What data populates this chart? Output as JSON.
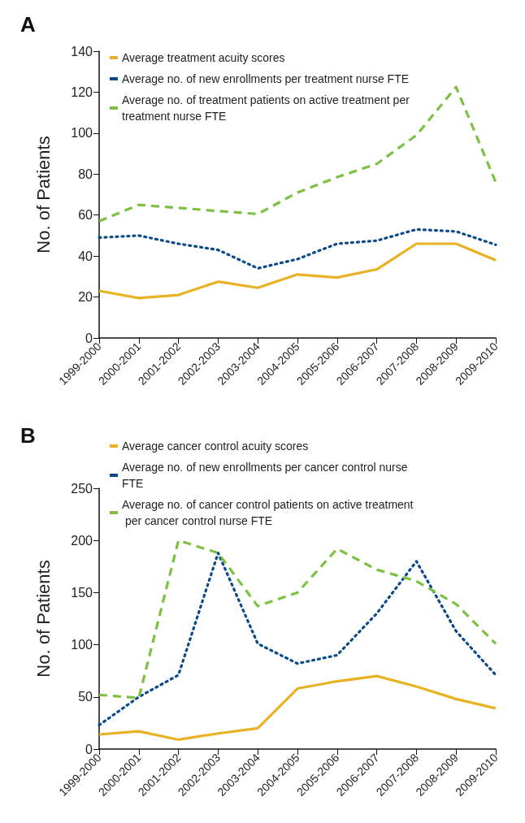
{
  "chart_data": [
    {
      "type": "line",
      "title": "A",
      "ylabel": "No. of Patients",
      "categories": [
        "1999-2000",
        "2000-2001",
        "2001-2002",
        "2002-2003",
        "2003-2004",
        "2004-2005",
        "2005-2006",
        "2006-2007",
        "2007-2008",
        "2008-2009",
        "2009-2010"
      ],
      "ylim": [
        0,
        140
      ],
      "yticks": [
        0,
        20,
        40,
        60,
        80,
        100,
        120,
        140
      ],
      "grid": false,
      "legend": "top left",
      "marker": "none",
      "series": [
        {
          "name": "Average treatment acuity scores",
          "color": "#e8b224",
          "line_style": "solid",
          "values": [
            23,
            19.5,
            21,
            27.5,
            24.5,
            31,
            29.5,
            33.5,
            46,
            46,
            38
          ]
        },
        {
          "name": "Average no. of new enrollments per treatment nurse FTE",
          "color": "#0b4a8a",
          "line_style": "dotted",
          "values": [
            49,
            50,
            46,
            43,
            34,
            38.5,
            46,
            47.5,
            53,
            52,
            45.5
          ]
        },
        {
          "name": "Average no. of treatment patients on active treatment per treatment nurse FTE",
          "color": "#7cc142",
          "line_style": "dashed",
          "values": [
            57,
            65,
            63.5,
            62,
            60.5,
            71,
            78.5,
            85,
            99,
            122.5,
            76
          ]
        }
      ]
    },
    {
      "type": "line",
      "title": "B",
      "ylabel": "No. of Patients",
      "categories": [
        "1999-2000",
        "2000-2001",
        "2001-2002",
        "2002-2003",
        "2003-2004",
        "2004-2005",
        "2005-2006",
        "2006-2007",
        "2007-2008",
        "2008-2009",
        "2009-2010"
      ],
      "ylim": [
        0,
        250
      ],
      "yticks": [
        0,
        50,
        100,
        150,
        200,
        250
      ],
      "grid": false,
      "legend": "top left",
      "marker": "none",
      "series": [
        {
          "name": "Average cancer control acuity scores",
          "color": "#e8b224",
          "line_style": "solid",
          "values": [
            14,
            17,
            9,
            15,
            20,
            58,
            65,
            70,
            60,
            48,
            39
          ]
        },
        {
          "name": "Average no. of new enrollments per cancer control nurse FTE",
          "color": "#0b4a8a",
          "line_style": "dotted",
          "values": [
            23,
            50,
            71,
            188,
            101,
            82,
            90,
            130,
            180,
            113,
            71
          ]
        },
        {
          "name": "Average no. of cancer control patients on active treatment per cancer control nurse FTE",
          "color": "#7cc142",
          "line_style": "dashed",
          "values": [
            52,
            49,
            200,
            188,
            137,
            150,
            192,
            172,
            161,
            139,
            101
          ]
        }
      ]
    }
  ]
}
